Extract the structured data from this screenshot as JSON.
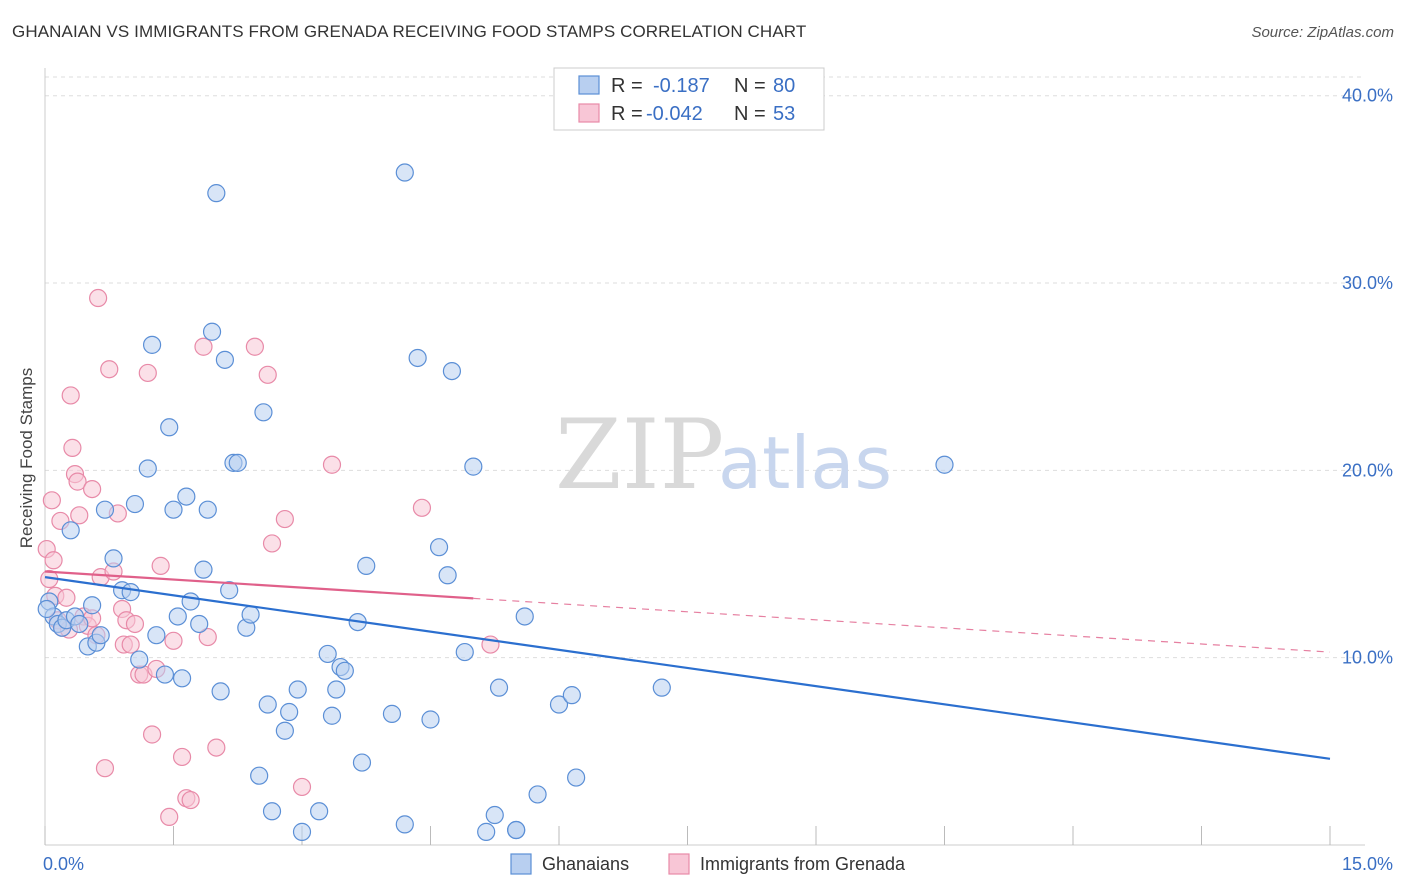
{
  "header": {
    "title": "GHANAIAN VS IMMIGRANTS FROM GRENADA RECEIVING FOOD STAMPS CORRELATION CHART",
    "source": "Source: ZipAtlas.com"
  },
  "watermark": {
    "zip": "ZIP",
    "atlas": "atlas"
  },
  "colors": {
    "blue": "#5b8fd6",
    "blue_fill": "#b8cff0",
    "blue_line": "#2b6fcf",
    "pink": "#e88aa8",
    "pink_fill": "#f8c6d6",
    "pink_line": "#e0608a",
    "grid": "#dddddd",
    "tick_text": "#3a6fc4"
  },
  "legend": {
    "rows": [
      {
        "r_label": "R =",
        "r_value": "-0.187",
        "n_label": "N =",
        "n_value": "80"
      },
      {
        "r_label": "R =",
        "r_value": "-0.042",
        "n_label": "N =",
        "n_value": "53"
      }
    ]
  },
  "chart_data": {
    "type": "scatter",
    "title": "GHANAIAN VS IMMIGRANTS FROM GRENADA RECEIVING FOOD STAMPS CORRELATION CHART",
    "xlabel": "",
    "ylabel": "Receiving Food Stamps",
    "xlim": [
      0,
      15
    ],
    "ylim": [
      0,
      41
    ],
    "x_tick_labels": [
      "0.0%",
      "15.0%"
    ],
    "y_ticks": [
      10,
      20,
      30,
      40
    ],
    "y_tick_labels": [
      "10.0%",
      "20.0%",
      "30.0%",
      "40.0%"
    ],
    "grid": true,
    "series": [
      {
        "name": "Ghanaians",
        "r": -0.187,
        "n": 80,
        "trend": {
          "x": [
            0,
            15
          ],
          "y": [
            14.3,
            4.6
          ],
          "dashed_after": null
        },
        "points": [
          [
            0.05,
            13.0
          ],
          [
            0.1,
            12.2
          ],
          [
            0.15,
            11.8
          ],
          [
            0.2,
            11.6
          ],
          [
            0.25,
            12.0
          ],
          [
            0.3,
            16.8
          ],
          [
            0.35,
            12.2
          ],
          [
            0.4,
            11.8
          ],
          [
            0.5,
            10.6
          ],
          [
            0.55,
            12.8
          ],
          [
            0.6,
            10.8
          ],
          [
            0.65,
            11.2
          ],
          [
            0.7,
            17.9
          ],
          [
            0.8,
            15.3
          ],
          [
            0.9,
            13.6
          ],
          [
            1.0,
            13.5
          ],
          [
            1.05,
            18.2
          ],
          [
            1.1,
            9.9
          ],
          [
            1.2,
            20.1
          ],
          [
            1.25,
            26.7
          ],
          [
            1.3,
            11.2
          ],
          [
            1.4,
            9.1
          ],
          [
            1.45,
            22.3
          ],
          [
            1.5,
            17.9
          ],
          [
            1.55,
            12.2
          ],
          [
            1.6,
            8.9
          ],
          [
            1.65,
            18.6
          ],
          [
            1.7,
            13.0
          ],
          [
            1.8,
            11.8
          ],
          [
            1.85,
            14.7
          ],
          [
            1.9,
            17.9
          ],
          [
            1.95,
            27.4
          ],
          [
            2.0,
            34.8
          ],
          [
            2.05,
            8.2
          ],
          [
            2.1,
            25.9
          ],
          [
            2.15,
            13.6
          ],
          [
            2.2,
            20.4
          ],
          [
            2.25,
            20.4
          ],
          [
            2.35,
            11.6
          ],
          [
            2.4,
            12.3
          ],
          [
            2.5,
            3.7
          ],
          [
            2.55,
            23.1
          ],
          [
            2.6,
            7.5
          ],
          [
            2.65,
            1.8
          ],
          [
            2.8,
            6.1
          ],
          [
            2.85,
            7.1
          ],
          [
            2.95,
            8.3
          ],
          [
            3.0,
            0.7
          ],
          [
            3.2,
            1.8
          ],
          [
            3.3,
            10.2
          ],
          [
            3.35,
            6.9
          ],
          [
            3.4,
            8.3
          ],
          [
            3.45,
            9.5
          ],
          [
            3.5,
            9.3
          ],
          [
            3.65,
            11.9
          ],
          [
            3.7,
            4.4
          ],
          [
            3.75,
            14.9
          ],
          [
            4.05,
            7.0
          ],
          [
            4.2,
            35.9
          ],
          [
            4.2,
            1.1
          ],
          [
            4.35,
            26.0
          ],
          [
            4.5,
            6.7
          ],
          [
            4.6,
            15.9
          ],
          [
            4.7,
            14.4
          ],
          [
            4.75,
            25.3
          ],
          [
            4.9,
            10.3
          ],
          [
            5.0,
            20.2
          ],
          [
            5.15,
            0.7
          ],
          [
            5.25,
            1.6
          ],
          [
            5.3,
            8.4
          ],
          [
            5.5,
            0.8
          ],
          [
            5.5,
            0.8
          ],
          [
            5.6,
            12.2
          ],
          [
            5.75,
            2.7
          ],
          [
            6.0,
            7.5
          ],
          [
            6.15,
            8.0
          ],
          [
            6.2,
            3.6
          ],
          [
            7.2,
            8.4
          ],
          [
            10.5,
            20.3
          ],
          [
            0.02,
            12.6
          ]
        ]
      },
      {
        "name": "Immigrants from Grenada",
        "r": -0.042,
        "n": 53,
        "trend": {
          "x": [
            0,
            15
          ],
          "y": [
            14.6,
            10.3
          ],
          "solid_until_x": 5.0
        },
        "points": [
          [
            0.02,
            15.8
          ],
          [
            0.05,
            14.2
          ],
          [
            0.08,
            18.4
          ],
          [
            0.1,
            15.2
          ],
          [
            0.12,
            13.3
          ],
          [
            0.15,
            12.0
          ],
          [
            0.18,
            17.3
          ],
          [
            0.2,
            11.6
          ],
          [
            0.25,
            13.2
          ],
          [
            0.28,
            11.5
          ],
          [
            0.3,
            24.0
          ],
          [
            0.32,
            21.2
          ],
          [
            0.35,
            19.8
          ],
          [
            0.38,
            19.4
          ],
          [
            0.4,
            17.6
          ],
          [
            0.45,
            12.2
          ],
          [
            0.5,
            11.7
          ],
          [
            0.55,
            19.0
          ],
          [
            0.55,
            12.1
          ],
          [
            0.6,
            11.2
          ],
          [
            0.62,
            29.2
          ],
          [
            0.65,
            14.3
          ],
          [
            0.7,
            4.1
          ],
          [
            0.75,
            25.4
          ],
          [
            0.8,
            14.6
          ],
          [
            0.85,
            17.7
          ],
          [
            0.9,
            12.6
          ],
          [
            0.92,
            10.7
          ],
          [
            0.95,
            12.0
          ],
          [
            1.0,
            10.7
          ],
          [
            1.05,
            11.8
          ],
          [
            1.1,
            9.1
          ],
          [
            1.15,
            9.1
          ],
          [
            1.2,
            25.2
          ],
          [
            1.25,
            5.9
          ],
          [
            1.3,
            9.4
          ],
          [
            1.35,
            14.9
          ],
          [
            1.45,
            1.5
          ],
          [
            1.5,
            10.9
          ],
          [
            1.6,
            4.7
          ],
          [
            1.65,
            2.5
          ],
          [
            1.7,
            2.4
          ],
          [
            1.85,
            26.6
          ],
          [
            1.9,
            11.1
          ],
          [
            2.0,
            5.2
          ],
          [
            2.45,
            26.6
          ],
          [
            2.6,
            25.1
          ],
          [
            2.65,
            16.1
          ],
          [
            2.8,
            17.4
          ],
          [
            3.0,
            3.1
          ],
          [
            3.35,
            20.3
          ],
          [
            4.4,
            18.0
          ],
          [
            5.2,
            10.7
          ]
        ]
      }
    ]
  },
  "bottom_legend": {
    "items": [
      {
        "label": "Ghanaians"
      },
      {
        "label": "Immigrants from Grenada"
      }
    ]
  }
}
